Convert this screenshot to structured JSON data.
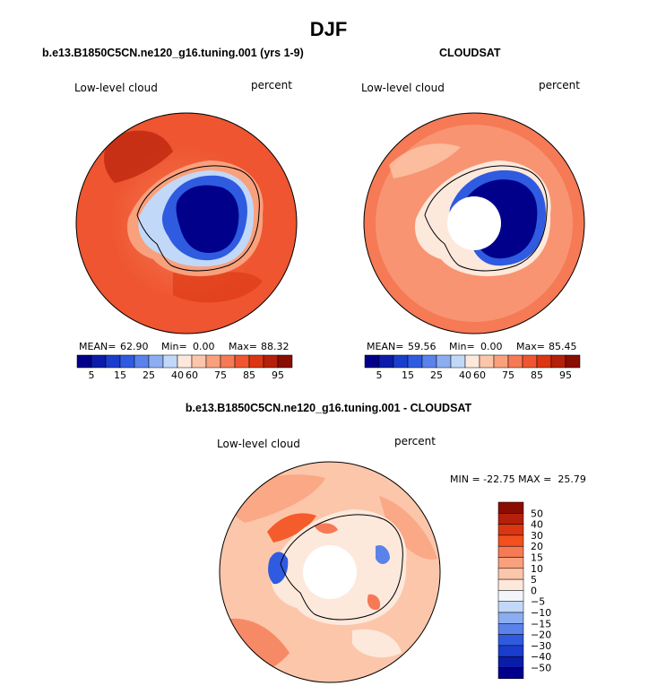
{
  "header": {
    "season": "DJF",
    "left_title": "b.e13.B1850C5CN.ne120_g16.tuning.001 (yrs 1-9)",
    "right_title": "CLOUDSAT",
    "diff_title": "b.e13.B1850C5CN.ne120_g16.tuning.001 - CLOUDSAT"
  },
  "panels": {
    "model": {
      "variable": "Low-level cloud",
      "units": "percent",
      "mean_label": "MEAN=",
      "mean_value": "62.90",
      "min_label": "Min=",
      "min_value": "0.00",
      "max_label": "Max=",
      "max_value": "88.32"
    },
    "obs": {
      "variable": "Low-level cloud",
      "units": "percent",
      "mean_label": "MEAN=",
      "mean_value": "59.56",
      "min_label": "Min=",
      "min_value": "0.00",
      "max_label": "Max=",
      "max_value": "85.45"
    },
    "diff": {
      "variable": "Low-level cloud",
      "units": "percent",
      "minmax_text": "MIN = -22.75 MAX =  25.79"
    }
  },
  "colorbar_main": {
    "colors": [
      "#00008b",
      "#0a1ca8",
      "#1a3dcc",
      "#2f5be0",
      "#5a82ea",
      "#8cadf1",
      "#c2d8f8",
      "#fde8dc",
      "#fcc6aa",
      "#f9a07d",
      "#f57a55",
      "#ee5530",
      "#dc3512",
      "#b5200a",
      "#8a0d02"
    ],
    "tick_labels": [
      "5",
      "15",
      "25",
      "40",
      "60",
      "75",
      "85",
      "95"
    ]
  },
  "colorbar_diff": {
    "colors": [
      "#8a0d02",
      "#b5200a",
      "#dc3512",
      "#f3501d",
      "#f57a55",
      "#f9a07d",
      "#fcc6aa",
      "#fde8dc",
      "#f3f5fb",
      "#c2d8f8",
      "#8cadf1",
      "#5a82ea",
      "#2f5be0",
      "#1a3dcc",
      "#0a1ca8",
      "#00008b"
    ],
    "tick_labels": [
      "50",
      "40",
      "30",
      "20",
      "15",
      "10",
      "5",
      "0",
      "−5",
      "−10",
      "−15",
      "−20",
      "−30",
      "−40",
      "−50"
    ]
  }
}
